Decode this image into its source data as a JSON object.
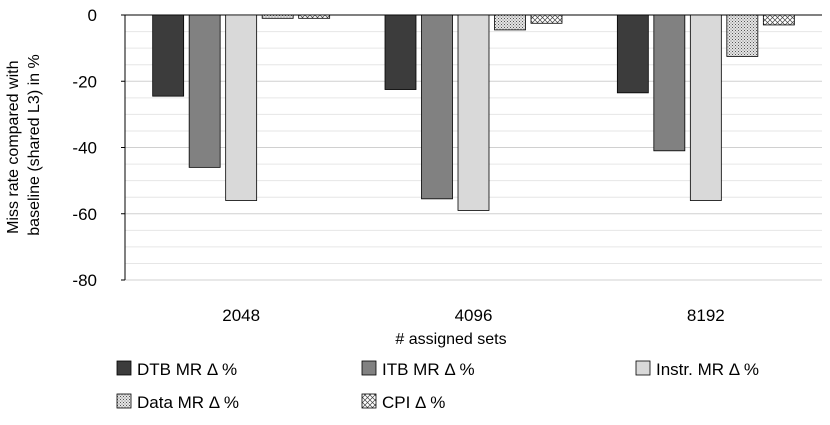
{
  "chart_data": {
    "type": "bar",
    "categories": [
      "2048",
      "4096",
      "8192"
    ],
    "series": [
      {
        "name": "DTB MR  Δ %",
        "values": [
          -24.5,
          -22.5,
          -23.5
        ],
        "fill": "#3c3c3c",
        "pattern": "solid"
      },
      {
        "name": "ITB MR Δ %",
        "values": [
          -46,
          -55.5,
          -41
        ],
        "fill": "#818181",
        "pattern": "solid"
      },
      {
        "name": "Instr. MR Δ %",
        "values": [
          -56,
          -59,
          -56
        ],
        "fill": "#d9d9d9",
        "pattern": "solid"
      },
      {
        "name": "Data MR Δ %",
        "values": [
          -1,
          -4.5,
          -12.5
        ],
        "fill": "#bfbfbf",
        "pattern": "dots"
      },
      {
        "name": "CPI Δ %",
        "values": [
          -1,
          -2.5,
          -3
        ],
        "fill": "#ffffff",
        "pattern": "crosshatch"
      }
    ],
    "ylim": [
      -80,
      0
    ],
    "yticks": [
      0,
      -20,
      -40,
      -60,
      -80
    ],
    "ylabel_lines": [
      "Miss rate compared with",
      "baseline (shared L3) in %"
    ],
    "xlabel": "# assigned sets",
    "grid": true,
    "legend_position": "bottom"
  }
}
